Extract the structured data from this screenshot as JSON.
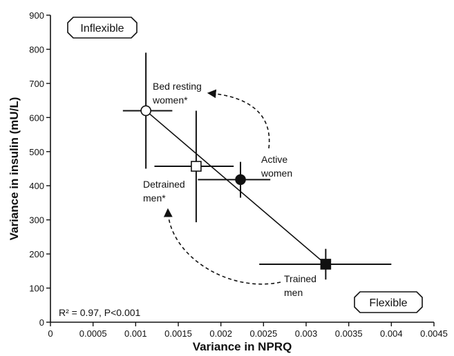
{
  "chart_data": {
    "type": "scatter",
    "xlabel": "Variance in NPRQ",
    "ylabel": "Variance in insulin (mU/L)",
    "xlim": [
      0,
      0.0045
    ],
    "ylim": [
      0,
      900
    ],
    "x_ticks": [
      "0",
      "0.0005",
      "0.001",
      "0.0015",
      "0.002",
      "0.0025",
      "0.003",
      "0.0035",
      "0.004",
      "0.0045"
    ],
    "y_ticks": [
      "0",
      "100",
      "200",
      "300",
      "400",
      "500",
      "600",
      "700",
      "800",
      "900"
    ],
    "grid": false,
    "points": [
      {
        "label": "Bed resting women*",
        "marker": "open-circle",
        "x": 0.00112,
        "y": 620,
        "x_err": [
          0.00085,
          0.00143
        ],
        "y_err": [
          450,
          790
        ]
      },
      {
        "label": "Detrained men*",
        "marker": "open-square",
        "x": 0.00171,
        "y": 457,
        "x_err": [
          0.00122,
          0.00215
        ],
        "y_err": [
          293,
          620
        ]
      },
      {
        "label": "Active women",
        "marker": "filled-circle",
        "x": 0.00223,
        "y": 418,
        "x_err": [
          0.00173,
          0.00258
        ],
        "y_err": [
          365,
          470
        ]
      },
      {
        "label": "Trained men",
        "marker": "filled-square",
        "x": 0.00323,
        "y": 170,
        "x_err": [
          0.00245,
          0.004
        ],
        "y_err": [
          125,
          215
        ]
      }
    ],
    "fit_line": {
      "from": [
        0.00112,
        620
      ],
      "to": [
        0.00323,
        170
      ]
    },
    "annotations": {
      "bed_resting_line1": "Bed resting",
      "bed_resting_line2": "women*",
      "active_line1": "Active",
      "active_line2": "women",
      "detrained_line1": "Detrained",
      "detrained_line2": "men*",
      "trained_line1": "Trained",
      "trained_line2": "men"
    },
    "label_boxes": {
      "top_left": "Inflexible",
      "bottom_right": "Flexible"
    },
    "stats": "R² = 0.97, P<0.001"
  }
}
